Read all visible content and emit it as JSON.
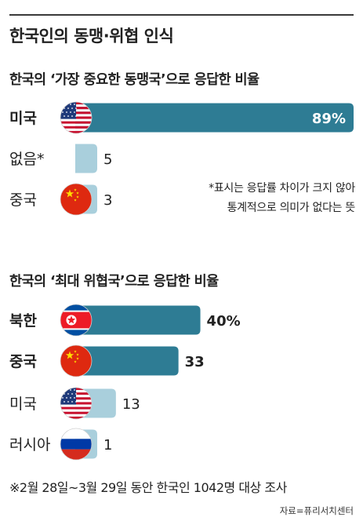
{
  "header": {
    "title": "한국인의 동맹·위협 인식"
  },
  "chart_data": [
    {
      "type": "bar",
      "orientation": "horizontal",
      "title": "한국의 ‘가장 중요한 동맹국’으로 응답한 비율",
      "categories": [
        "미국",
        "없음*",
        "중국"
      ],
      "values": [
        89,
        5,
        3
      ],
      "value_labels": [
        "89%",
        "5",
        "3"
      ],
      "label_bold": [
        true,
        false,
        false
      ],
      "flags": [
        "us",
        "none",
        "cn"
      ],
      "highlight": [
        true,
        false,
        false
      ],
      "note": [
        "*표시는 응답률 차이가 크지 않아",
        "통계적으로 의미가 없다는 뜻"
      ]
    },
    {
      "type": "bar",
      "orientation": "horizontal",
      "title": "한국의 ‘최대 위협국’으로 응답한 비율",
      "categories": [
        "북한",
        "중국",
        "미국",
        "러시아"
      ],
      "values": [
        40,
        33,
        13,
        1
      ],
      "value_labels": [
        "40%",
        "33",
        "13",
        "1"
      ],
      "label_bold": [
        true,
        true,
        false,
        false
      ],
      "flags": [
        "kp",
        "cn",
        "us",
        "ru"
      ],
      "highlight": [
        true,
        true,
        false,
        false
      ]
    }
  ],
  "colors": {
    "bar_highlight": "#2e7c94",
    "bar_light": "#a9cfdc",
    "value_on_bar": "#ffffff"
  },
  "footnote": "※2월 28일~3월 29일 동안 한국인 1042명 대상 조사",
  "source": "자료=퓨리서치센터"
}
